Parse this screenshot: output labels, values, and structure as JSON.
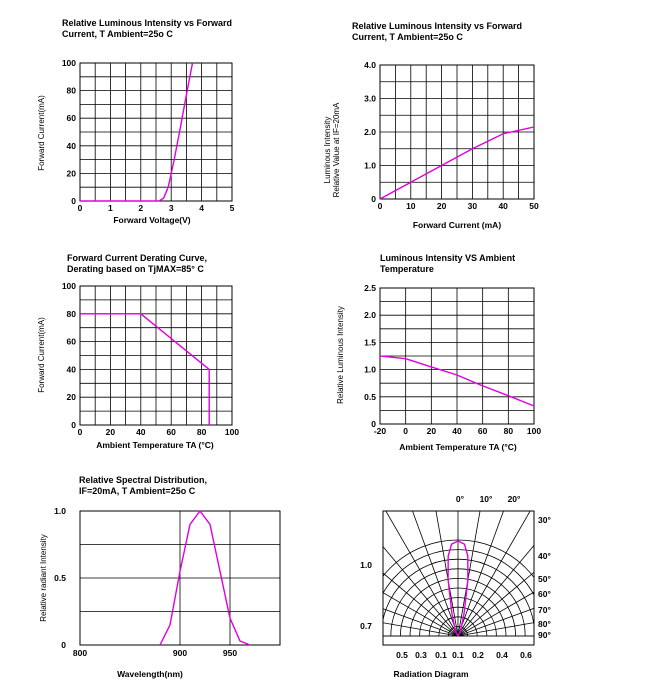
{
  "chart_data": [
    {
      "type": "line",
      "title": [
        "Relative Luminous Intensity vs Forward",
        "Current, T Ambient=25o C"
      ],
      "xlabel": "Forward Voltage(V)",
      "ylabel": "Forward Current(mA)",
      "xlim": [
        0,
        5
      ],
      "ylim": [
        0,
        100
      ],
      "xticks": [
        "0",
        "1",
        "2",
        "3",
        "4",
        "5"
      ],
      "yticks": [
        "0",
        "20",
        "40",
        "60",
        "80",
        "100"
      ],
      "grid": true,
      "color": "#e000e0",
      "series": [
        {
          "x": [
            0,
            2.6,
            2.75,
            2.9,
            3.1,
            3.3,
            3.5,
            3.7
          ],
          "y": [
            0,
            0,
            2,
            10,
            30,
            53,
            77,
            100
          ]
        }
      ]
    },
    {
      "type": "line",
      "title": [
        "Relative Luminous Intensity vs Forward",
        "Current, T Ambient=25o C"
      ],
      "xlabel": "Forward Current (mA)",
      "ylabel": [
        "Luminous Intensity",
        "Relative Value at IF=20mA"
      ],
      "xlim": [
        0,
        50
      ],
      "ylim": [
        0,
        4.0
      ],
      "xticks": [
        "0",
        "10",
        "20",
        "30",
        "40",
        "50"
      ],
      "yticks": [
        "0",
        "1.0",
        "2.0",
        "3.0",
        "4.0"
      ],
      "grid": true,
      "color": "#e000e0",
      "series": [
        {
          "x": [
            0,
            10,
            20,
            30,
            40,
            50
          ],
          "y": [
            0,
            0.5,
            1.0,
            1.5,
            1.95,
            2.15
          ]
        }
      ]
    },
    {
      "type": "line",
      "title": [
        "Forward Current Derating Curve,",
        "Derating based on TjMAX=85° C"
      ],
      "xlabel": "Ambient Temperature TA (°C)",
      "ylabel": "Forward Current(mA)",
      "xlim": [
        0,
        100
      ],
      "ylim": [
        0,
        100
      ],
      "xticks": [
        "0",
        "20",
        "40",
        "60",
        "80",
        "100"
      ],
      "yticks": [
        "0",
        "20",
        "40",
        "60",
        "80",
        "100"
      ],
      "grid": true,
      "color": "#e000e0",
      "series": [
        {
          "x": [
            0,
            40,
            85,
            85
          ],
          "y": [
            80,
            80,
            40,
            0
          ]
        }
      ]
    },
    {
      "type": "line",
      "title": [
        "Luminous Intensity VS Ambient",
        "Temperature"
      ],
      "xlabel": "Ambient Temperature TA (°C)",
      "ylabel": "Relative Luminous Intensity",
      "xlim": [
        -20,
        100
      ],
      "ylim": [
        0,
        2.5
      ],
      "xticks": [
        "-20",
        "0",
        "20",
        "40",
        "60",
        "80",
        "100"
      ],
      "yticks": [
        "0",
        "0.5",
        "1.0",
        "1.5",
        "2.0",
        "2.5"
      ],
      "grid": true,
      "color": "#e000e0",
      "series": [
        {
          "x": [
            -20,
            0,
            20,
            40,
            60,
            80,
            100
          ],
          "y": [
            1.25,
            1.2,
            1.05,
            0.9,
            0.7,
            0.52,
            0.33
          ]
        }
      ]
    },
    {
      "type": "line",
      "title": [
        "Relative Spectral Distribution,",
        "IF=20mA, T Ambient=25o C"
      ],
      "xlabel": "Wavelength(nm)",
      "ylabel": "Relative radiant Intensity",
      "xlim": [
        800,
        1000
      ],
      "ylim": [
        0,
        1.0
      ],
      "xticks": [
        "800",
        "900",
        "950"
      ],
      "xtick_values": [
        800,
        900,
        950
      ],
      "yticks": [
        "0",
        "0.5",
        "1.0"
      ],
      "grid": true,
      "color": "#e000e0",
      "series": [
        {
          "x": [
            880,
            890,
            900,
            910,
            920,
            930,
            940,
            950,
            960,
            970
          ],
          "y": [
            0,
            0.15,
            0.55,
            0.9,
            1.0,
            0.9,
            0.55,
            0.2,
            0.03,
            0
          ]
        }
      ]
    },
    {
      "type": "polar",
      "xlabel": "Radiation Diagram",
      "angle_labels_top": [
        "0°",
        "10°",
        "20°"
      ],
      "angle_labels_right": [
        "30°",
        "40°",
        "50°",
        "60°",
        "70°",
        "80°",
        "90°"
      ],
      "radial_labels_left": [
        "1.0",
        "0.7"
      ],
      "bottom_labels": [
        "0.5",
        "0.3",
        "0.1",
        "0.1",
        "0.2",
        "0.4",
        "0.6"
      ],
      "color": "#e000e0",
      "series": [
        {
          "angle_deg": [
            -90,
            -30,
            -15,
            -10,
            -7,
            -4,
            0,
            4,
            7,
            10,
            15,
            30,
            90
          ],
          "value": [
            0,
            0.05,
            0.25,
            0.6,
            0.85,
            0.97,
            1.0,
            0.97,
            0.85,
            0.6,
            0.25,
            0.05,
            0
          ]
        }
      ]
    }
  ]
}
